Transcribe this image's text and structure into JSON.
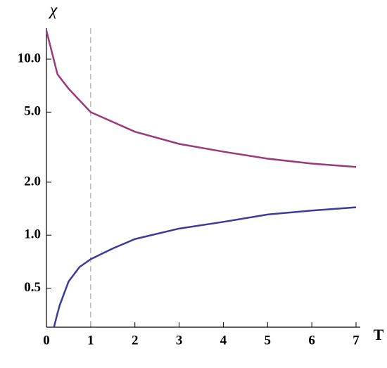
{
  "chart_data": {
    "type": "line",
    "xlabel": "T",
    "ylabel": "χ",
    "log_y": true,
    "xlim": [
      0,
      7
    ],
    "ylim": [
      0.3,
      15
    ],
    "xticks": [
      0,
      1,
      2,
      3,
      4,
      5,
      6,
      7
    ],
    "yticks": [
      0.5,
      {
        "value": 1,
        "label": "1.0"
      },
      {
        "value": 2,
        "label": "2.0"
      },
      {
        "value": 5,
        "label": "5.0"
      },
      {
        "value": 10,
        "label": "10.0"
      }
    ],
    "vline": 1,
    "series": [
      {
        "color": "#9b3a7a",
        "x": [
          0,
          0.25,
          0.5,
          1,
          1.5,
          2,
          3,
          4,
          5,
          6,
          7
        ],
        "values": [
          14.5,
          8.2,
          6.8,
          5.0,
          4.4,
          3.87,
          3.3,
          2.98,
          2.72,
          2.55,
          2.44
        ]
      },
      {
        "color": "#3b3b9e",
        "x": [
          0.17,
          0.25,
          0.3,
          0.5,
          0.75,
          1,
          1.5,
          2,
          3,
          4,
          5,
          6,
          7
        ],
        "values": [
          0.3,
          0.36,
          0.4,
          0.545,
          0.66,
          0.73,
          0.84,
          0.95,
          1.09,
          1.19,
          1.31,
          1.38,
          1.44
        ]
      }
    ]
  }
}
